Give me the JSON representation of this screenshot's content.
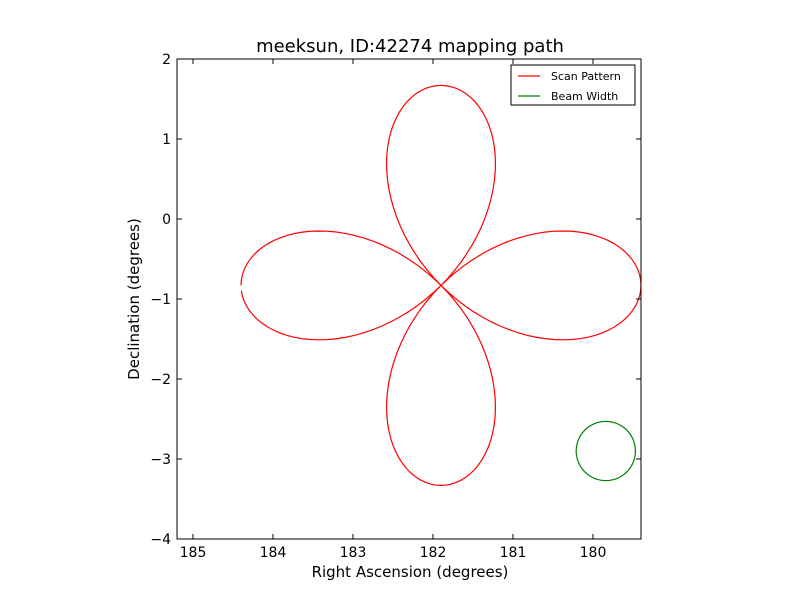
{
  "chart_data": {
    "type": "line",
    "title": "meeksun, ID:42274 mapping path",
    "xlabel": "Right Ascension (degrees)",
    "ylabel": "Declination (degrees)",
    "xlim": [
      185.2,
      179.4
    ],
    "ylim": [
      -4,
      2
    ],
    "x_inverted": true,
    "xticks": [
      185,
      184,
      183,
      182,
      181,
      180
    ],
    "yticks": [
      2,
      1,
      0,
      -1,
      -2,
      -3,
      -4
    ],
    "ytick_labels": [
      "2",
      "1",
      "0",
      "−1",
      "−2",
      "−3",
      "−4"
    ],
    "grid": false,
    "legend": {
      "position": "top-right"
    },
    "series": [
      {
        "name": "Scan Pattern",
        "color": "#ff0000",
        "shape": "four-petal rose scan",
        "center": [
          181.9,
          -0.83
        ],
        "petal_length": 2.5,
        "start": [
          184.42,
          -0.83
        ],
        "end": [
          184.37,
          -0.95
        ]
      },
      {
        "name": "Beam Width",
        "color": "#008000",
        "shape": "circle",
        "center": [
          179.84,
          -2.9
        ],
        "radius": 0.37
      }
    ]
  }
}
